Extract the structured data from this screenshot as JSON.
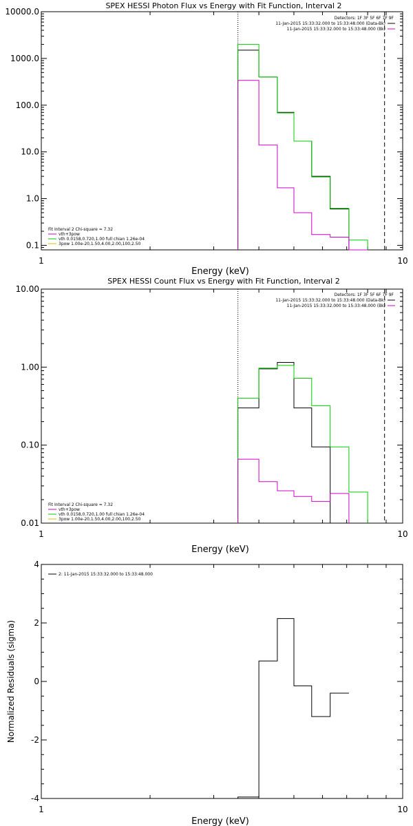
{
  "chart_data": [
    {
      "type": "line",
      "title": "SPEX HESSI Photon Flux vs Energy with Fit Function, Interval 2",
      "xlabel": "Energy (keV)",
      "ylabel": "",
      "xscale": "log",
      "yscale": "log",
      "xlim": [
        1,
        10
      ],
      "ylim": [
        0.08,
        10000
      ],
      "x_ticks": [
        1,
        10
      ],
      "y_ticks": [
        {
          "v": 0.1,
          "label": "0.1"
        },
        {
          "v": 1,
          "label": "1.0"
        },
        {
          "v": 10,
          "label": "10.0"
        },
        {
          "v": 100,
          "label": "100.0"
        },
        {
          "v": 1000,
          "label": "1000.0"
        },
        {
          "v": 10000,
          "label": "10000.0"
        }
      ],
      "vlines": [
        {
          "x": 3.5,
          "style": "dotted"
        },
        {
          "x": 8.91,
          "style": "dashed"
        }
      ],
      "legend_tr": [
        {
          "text": "Detectors: 1F 3F 5F 6F 7F 9F",
          "color": "#000000"
        },
        {
          "text": "11-Jan-2015 15:33:32.000 to 15:33:48.000 (Data-Bk)",
          "color": "#000000"
        },
        {
          "text": "11-Jan-2015 15:33:32.000 to 15:33:48.000 (Bk)",
          "color": "#cc00cc"
        }
      ],
      "legend_bl": [
        {
          "text": "Fit Interval 2   Chi-square = 7.32",
          "color": "#000000",
          "line": false
        },
        {
          "text": "vth+3pow",
          "color": "#cc00cc",
          "line": true
        },
        {
          "text": "vth 0.0158,0.720,1.00  full chian 1.26e-04",
          "color": "#00cc00",
          "line": true
        },
        {
          "text": "3pow 1.00e-20,1.50,4.00,2.00,100,2.50",
          "color": "#e6b800",
          "line": true
        }
      ],
      "edges": [
        3.5,
        4.0,
        4.5,
        5.0,
        5.6,
        6.3,
        7.1,
        8.0,
        8.91,
        10.0
      ],
      "series": [
        {
          "color": "#000000",
          "values": [
            1500,
            400,
            70,
            17,
            3.0,
            0.6,
            null,
            null,
            null
          ]
        },
        {
          "color": "#00cc00",
          "values": [
            2000,
            400,
            68,
            17,
            2.9,
            0.62,
            0.13,
            null,
            null
          ]
        },
        {
          "color": "#cc00cc",
          "values": [
            340,
            14,
            1.7,
            0.5,
            0.17,
            0.15,
            0.08,
            null,
            null
          ]
        }
      ]
    },
    {
      "type": "line",
      "title": "SPEX HESSI Count Flux vs Energy with Fit Function, Interval 2",
      "xlabel": "Energy (keV)",
      "ylabel": "",
      "xscale": "log",
      "yscale": "log",
      "xlim": [
        1,
        10
      ],
      "ylim": [
        0.01,
        10
      ],
      "x_ticks": [
        1,
        10
      ],
      "y_ticks": [
        {
          "v": 0.01,
          "label": "0.01"
        },
        {
          "v": 0.1,
          "label": "0.10"
        },
        {
          "v": 1,
          "label": "1.00"
        },
        {
          "v": 10,
          "label": "10.00"
        }
      ],
      "vlines": [
        {
          "x": 3.5,
          "style": "dotted"
        },
        {
          "x": 8.91,
          "style": "dashed"
        }
      ],
      "legend_tr": [
        {
          "text": "Detectors: 1F 3F 5F 6F 7F 9F",
          "color": "#000000"
        },
        {
          "text": "11-Jan-2015 15:33:32.000 to 15:33:48.000 (Data-Bk)",
          "color": "#000000"
        },
        {
          "text": "11-Jan-2015 15:33:32.000 to 15:33:48.000 (Bk)",
          "color": "#cc00cc"
        }
      ],
      "legend_bl": [
        {
          "text": "Fit Interval 2   Chi-square = 7.32",
          "color": "#000000",
          "line": false
        },
        {
          "text": "vth+3pow",
          "color": "#cc00cc",
          "line": true
        },
        {
          "text": "vth 0.0158,0.720,1.00  full chian 1.26e-04",
          "color": "#00cc00",
          "line": true
        },
        {
          "text": "3pow 1.00e-20,1.50,4.00,2.00,100,2.50",
          "color": "#e6b800",
          "line": true
        }
      ],
      "edges": [
        3.5,
        4.0,
        4.5,
        5.0,
        5.6,
        6.3,
        7.1,
        8.0,
        8.91,
        10.0
      ],
      "series": [
        {
          "color": "#000000",
          "values": [
            0.3,
            0.95,
            1.15,
            0.3,
            0.095,
            null,
            null,
            null,
            null
          ]
        },
        {
          "color": "#00cc00",
          "values": [
            0.4,
            0.97,
            1.05,
            0.72,
            0.32,
            0.095,
            0.025,
            null,
            null
          ]
        },
        {
          "color": "#cc00cc",
          "values": [
            0.066,
            0.034,
            0.026,
            0.022,
            0.019,
            0.024,
            null,
            null,
            null
          ]
        }
      ]
    },
    {
      "type": "line",
      "title": "",
      "xlabel": "Energy (keV)",
      "ylabel": "Normalized Residuals (sigma)",
      "xscale": "log",
      "yscale": "linear",
      "xlim": [
        1,
        10
      ],
      "ylim": [
        -4,
        4
      ],
      "x_ticks": [
        1,
        10
      ],
      "y_ticks": [
        {
          "v": -4,
          "label": "-4"
        },
        {
          "v": -2,
          "label": "-2"
        },
        {
          "v": 0,
          "label": "0"
        },
        {
          "v": 2,
          "label": "2"
        },
        {
          "v": 4,
          "label": "4"
        }
      ],
      "legend_tl": [
        {
          "text": "2: 11-Jan-2015 15:33:32.000 to 15:33:48.000",
          "color": "#000000"
        }
      ],
      "edges": [
        3.5,
        4.0,
        4.5,
        5.0,
        5.6,
        6.3,
        7.1
      ],
      "series": [
        {
          "color": "#000000",
          "values": [
            -3.95,
            0.7,
            2.15,
            -0.15,
            -1.2,
            -0.4
          ]
        }
      ]
    }
  ]
}
